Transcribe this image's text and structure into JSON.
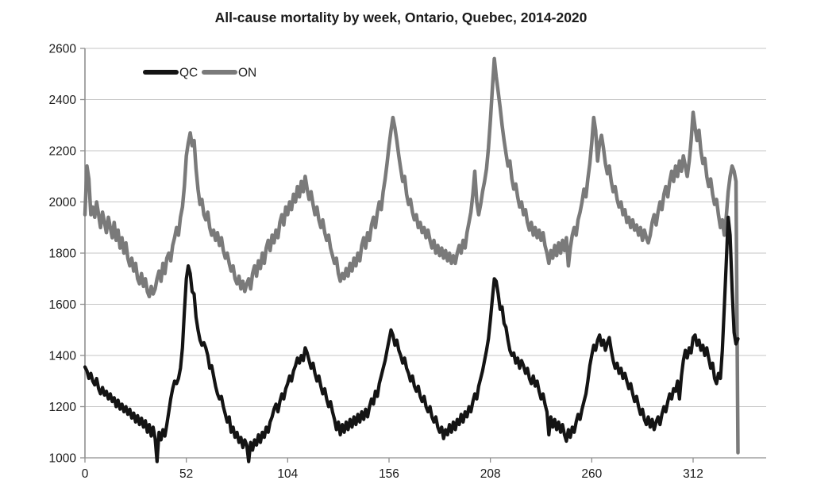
{
  "title": "All-cause mortality by week, Ontario, Quebec, 2014-2020",
  "legend": [
    {
      "label": "QC",
      "color": "#141414"
    },
    {
      "label": "ON",
      "color": "#7a7a7a"
    }
  ],
  "colors": {
    "qc_line": "#141414",
    "on_line": "#7a7a7a",
    "gridline": "#c6c6c6",
    "axis": "#8f8f8f",
    "text": "#1a1a1a"
  },
  "chart_data": {
    "type": "line",
    "title": "All-cause mortality by week, Ontario, Quebec, 2014-2020",
    "xlabel": "",
    "ylabel": "",
    "xlim": [
      0,
      349
    ],
    "ylim": [
      1000,
      2600
    ],
    "x_ticks": [
      0,
      52,
      104,
      156,
      208,
      260,
      312
    ],
    "y_ticks": [
      1000,
      1200,
      1400,
      1600,
      1800,
      2000,
      2200,
      2400,
      2600
    ],
    "grid": true,
    "legend_position": "top-left-inside",
    "x_start": 0,
    "x_step": 1,
    "series": [
      {
        "name": "ON",
        "color": "#7a7a7a",
        "values": [
          1950,
          2140,
          2090,
          1950,
          1980,
          1940,
          2000,
          1950,
          1900,
          1960,
          1920,
          1880,
          1940,
          1900,
          1860,
          1920,
          1850,
          1890,
          1820,
          1860,
          1800,
          1840,
          1780,
          1750,
          1780,
          1730,
          1760,
          1700,
          1680,
          1720,
          1670,
          1700,
          1650,
          1630,
          1670,
          1640,
          1660,
          1700,
          1730,
          1690,
          1760,
          1720,
          1780,
          1800,
          1770,
          1830,
          1860,
          1900,
          1870,
          1940,
          1980,
          2060,
          2180,
          2230,
          2270,
          2220,
          2240,
          2130,
          2050,
          1990,
          2010,
          1950,
          1930,
          1960,
          1900,
          1870,
          1890,
          1850,
          1880,
          1830,
          1860,
          1810,
          1780,
          1800,
          1760,
          1730,
          1750,
          1700,
          1680,
          1710,
          1660,
          1690,
          1650,
          1680,
          1700,
          1660,
          1720,
          1750,
          1710,
          1770,
          1740,
          1800,
          1760,
          1820,
          1850,
          1810,
          1870,
          1840,
          1890,
          1860,
          1920,
          1950,
          1910,
          1980,
          1950,
          2000,
          1970,
          2030,
          2000,
          2060,
          2020,
          2080,
          2040,
          2100,
          2050,
          2010,
          2040,
          1990,
          1950,
          1980,
          1930,
          1900,
          1930,
          1880,
          1850,
          1870,
          1820,
          1790,
          1760,
          1780,
          1720,
          1690,
          1720,
          1700,
          1740,
          1710,
          1760,
          1730,
          1780,
          1750,
          1800,
          1770,
          1830,
          1860,
          1820,
          1880,
          1850,
          1910,
          1940,
          1900,
          1960,
          2000,
          1970,
          2040,
          2090,
          2150,
          2220,
          2280,
          2330,
          2290,
          2240,
          2180,
          2130,
          2080,
          2100,
          2030,
          1990,
          2010,
          1960,
          1930,
          1950,
          1900,
          1920,
          1880,
          1900,
          1860,
          1890,
          1850,
          1820,
          1850,
          1800,
          1830,
          1790,
          1820,
          1780,
          1810,
          1770,
          1800,
          1760,
          1790,
          1760,
          1800,
          1830,
          1800,
          1850,
          1820,
          1880,
          1920,
          1960,
          2030,
          2120,
          2000,
          1950,
          1990,
          2040,
          2080,
          2130,
          2210,
          2320,
          2440,
          2560,
          2490,
          2430,
          2370,
          2300,
          2240,
          2190,
          2140,
          2160,
          2090,
          2050,
          2070,
          2020,
          1980,
          2000,
          1950,
          1970,
          1920,
          1890,
          1920,
          1870,
          1900,
          1860,
          1890,
          1850,
          1880,
          1830,
          1800,
          1760,
          1810,
          1780,
          1830,
          1790,
          1840,
          1800,
          1850,
          1810,
          1860,
          1750,
          1820,
          1870,
          1900,
          1870,
          1930,
          1960,
          2000,
          2050,
          2020,
          2090,
          2150,
          2230,
          2330,
          2280,
          2160,
          2230,
          2260,
          2210,
          2150,
          2110,
          2140,
          2080,
          2040,
          2060,
          2010,
          1980,
          2000,
          1950,
          1970,
          1920,
          1940,
          1900,
          1930,
          1890,
          1910,
          1870,
          1900,
          1850,
          1890,
          1860,
          1840,
          1870,
          1920,
          1950,
          1910,
          1960,
          2000,
          1970,
          2030,
          2060,
          2020,
          2080,
          2120,
          2080,
          2140,
          2100,
          2160,
          2120,
          2180,
          2140,
          2100,
          2160,
          2240,
          2350,
          2290,
          2240,
          2280,
          2200,
          2150,
          2170,
          2100,
          2060,
          2090,
          2030,
          1990,
          2010,
          1950,
          1900,
          1930,
          1870,
          1940,
          2040,
          2100,
          2140,
          2120,
          2080,
          1020
        ]
      },
      {
        "name": "QC",
        "color": "#141414",
        "values": [
          1355,
          1340,
          1310,
          1330,
          1300,
          1285,
          1310,
          1270,
          1250,
          1275,
          1245,
          1260,
          1230,
          1250,
          1220,
          1235,
          1200,
          1225,
          1190,
          1210,
          1180,
          1200,
          1170,
          1190,
          1155,
          1175,
          1140,
          1165,
          1130,
          1155,
          1120,
          1145,
          1100,
          1130,
          1085,
          1120,
          1075,
          985,
          1100,
          1070,
          1110,
          1085,
          1130,
          1180,
          1230,
          1270,
          1300,
          1290,
          1310,
          1350,
          1430,
          1570,
          1700,
          1750,
          1720,
          1650,
          1640,
          1550,
          1500,
          1460,
          1440,
          1450,
          1430,
          1400,
          1350,
          1360,
          1320,
          1280,
          1250,
          1230,
          1240,
          1200,
          1170,
          1140,
          1160,
          1100,
          1120,
          1080,
          1100,
          1060,
          1080,
          1040,
          1070,
          1050,
          985,
          1060,
          1030,
          1070,
          1050,
          1090,
          1060,
          1100,
          1080,
          1120,
          1100,
          1140,
          1160,
          1190,
          1210,
          1180,
          1220,
          1250,
          1230,
          1270,
          1290,
          1320,
          1300,
          1340,
          1360,
          1390,
          1370,
          1400,
          1380,
          1430,
          1410,
          1380,
          1350,
          1370,
          1330,
          1300,
          1320,
          1280,
          1250,
          1270,
          1230,
          1200,
          1220,
          1180,
          1150,
          1110,
          1140,
          1090,
          1130,
          1100,
          1140,
          1110,
          1150,
          1120,
          1160,
          1130,
          1170,
          1140,
          1180,
          1150,
          1190,
          1160,
          1200,
          1230,
          1210,
          1260,
          1240,
          1290,
          1320,
          1350,
          1380,
          1420,
          1460,
          1500,
          1480,
          1440,
          1460,
          1420,
          1400,
          1370,
          1390,
          1350,
          1330,
          1300,
          1320,
          1280,
          1260,
          1280,
          1240,
          1220,
          1240,
          1200,
          1180,
          1200,
          1160,
          1140,
          1160,
          1120,
          1100,
          1120,
          1075,
          1110,
          1090,
          1130,
          1100,
          1140,
          1110,
          1150,
          1130,
          1170,
          1140,
          1180,
          1160,
          1200,
          1180,
          1220,
          1250,
          1230,
          1280,
          1310,
          1340,
          1380,
          1420,
          1465,
          1540,
          1620,
          1700,
          1690,
          1640,
          1580,
          1590,
          1525,
          1510,
          1460,
          1420,
          1400,
          1410,
          1370,
          1390,
          1350,
          1380,
          1360,
          1330,
          1350,
          1310,
          1290,
          1320,
          1280,
          1300,
          1260,
          1230,
          1250,
          1210,
          1180,
          1090,
          1160,
          1120,
          1150,
          1110,
          1140,
          1100,
          1130,
          1090,
          1065,
          1110,
          1080,
          1120,
          1100,
          1140,
          1170,
          1150,
          1190,
          1220,
          1250,
          1300,
          1360,
          1400,
          1440,
          1420,
          1460,
          1480,
          1440,
          1460,
          1420,
          1450,
          1470,
          1420,
          1380,
          1350,
          1370,
          1330,
          1350,
          1310,
          1330,
          1300,
          1270,
          1290,
          1250,
          1220,
          1240,
          1200,
          1170,
          1190,
          1150,
          1130,
          1160,
          1120,
          1150,
          1110,
          1140,
          1160,
          1130,
          1170,
          1200,
          1180,
          1220,
          1250,
          1230,
          1270,
          1260,
          1300,
          1230,
          1320,
          1380,
          1420,
          1390,
          1430,
          1410,
          1470,
          1480,
          1440,
          1460,
          1420,
          1440,
          1400,
          1430,
          1390,
          1350,
          1370,
          1310,
          1290,
          1330,
          1310,
          1420,
          1590,
          1760,
          1940,
          1870,
          1660,
          1490,
          1445,
          1465
        ]
      }
    ]
  }
}
